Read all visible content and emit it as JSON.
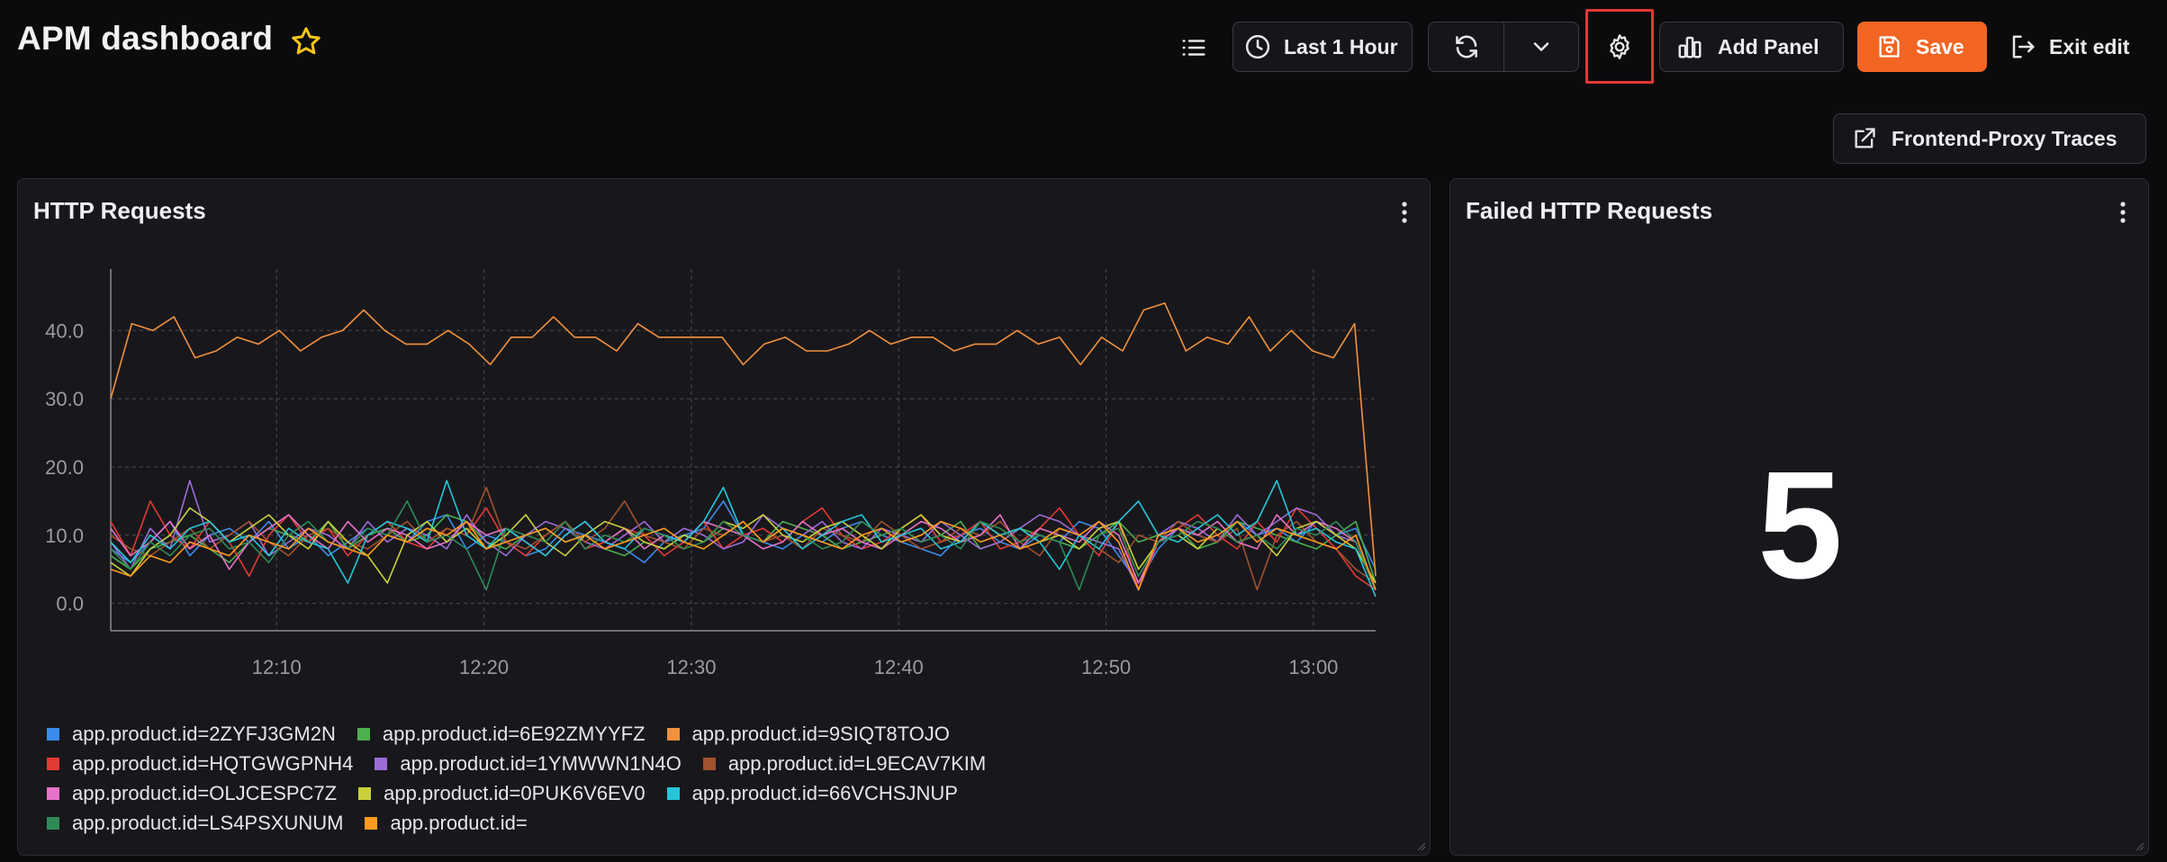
{
  "header": {
    "title": "APM dashboard",
    "time_range_label": "Last 1 Hour",
    "add_panel_label": "Add Panel",
    "save_label": "Save",
    "exit_edit_label": "Exit edit",
    "traces_link_label": "Frontend-Proxy Traces"
  },
  "colors": {
    "accent": "#f26522",
    "highlight_border": "#e53935"
  },
  "panels": {
    "http_requests": {
      "title": "HTTP Requests"
    },
    "failed_http_requests": {
      "title": "Failed HTTP Requests",
      "value": "5"
    }
  },
  "chart_data": {
    "type": "line",
    "title": "",
    "xlabel": "",
    "ylabel": "",
    "x_ticks": [
      "12:10",
      "12:20",
      "12:30",
      "12:40",
      "12:50",
      "13:00"
    ],
    "x_range_minutes": [
      2,
      63
    ],
    "y_ticks": [
      "0.0",
      "10.0",
      "20.0",
      "30.0",
      "40.0"
    ],
    "ylim": [
      -4,
      49
    ],
    "grid": true,
    "legend_position": "bottom-left",
    "series": [
      {
        "name": "app.product.id=2ZYFJ3GM2N",
        "color": "#3b8beb",
        "values": [
          8,
          6,
          9,
          12,
          7,
          10,
          11,
          9,
          12,
          8,
          10,
          7,
          9,
          11,
          10,
          9,
          12,
          13,
          8,
          10,
          9,
          7,
          8,
          11,
          10,
          9,
          8,
          6,
          9,
          10,
          11,
          15,
          10,
          9,
          8,
          10,
          9,
          11,
          12,
          10,
          9,
          8,
          7,
          10,
          11,
          9,
          8,
          10,
          9,
          12,
          11,
          7,
          3,
          8,
          11,
          10,
          9,
          12,
          10,
          11,
          9,
          12,
          10,
          11,
          5
        ]
      },
      {
        "name": "app.product.id=6E92ZMYYFZ",
        "color": "#4caf50",
        "values": [
          7,
          5,
          8,
          9,
          10,
          8,
          6,
          9,
          11,
          10,
          9,
          12,
          8,
          10,
          11,
          9,
          10,
          13,
          12,
          9,
          8,
          10,
          11,
          9,
          10,
          8,
          7,
          9,
          8,
          10,
          9,
          11,
          10,
          9,
          12,
          11,
          10,
          8,
          9,
          10,
          11,
          9,
          10,
          12,
          8,
          9,
          11,
          10,
          9,
          8,
          10,
          12,
          9,
          10,
          11,
          8,
          9,
          12,
          11,
          10,
          9,
          8,
          10,
          12,
          3
        ]
      },
      {
        "name": "app.product.id=9SIQT8TOJO",
        "color": "#f2913d",
        "values": [
          30,
          41,
          40,
          42,
          36,
          37,
          39,
          38,
          40,
          37,
          39,
          40,
          43,
          40,
          38,
          38,
          40,
          38,
          35,
          39,
          39,
          42,
          39,
          39,
          37,
          41,
          39,
          39,
          39,
          39,
          35,
          38,
          39,
          37,
          37,
          38,
          40,
          38,
          39,
          39,
          37,
          38,
          38,
          40,
          38,
          39,
          35,
          39,
          37,
          43,
          44,
          37,
          39,
          38,
          42,
          37,
          40,
          37,
          36,
          41,
          4
        ]
      },
      {
        "name": "app.product.id=HQTGWGPNH4",
        "color": "#e53935",
        "values": [
          12,
          7,
          15,
          10,
          8,
          12,
          9,
          4,
          10,
          13,
          9,
          11,
          7,
          10,
          12,
          9,
          8,
          11,
          10,
          14,
          9,
          7,
          10,
          12,
          8,
          9,
          11,
          10,
          7,
          9,
          12,
          8,
          10,
          11,
          9,
          12,
          14,
          10,
          8,
          9,
          11,
          13,
          9,
          10,
          12,
          8,
          9,
          11,
          14,
          10,
          7,
          12,
          2,
          9,
          11,
          13,
          10,
          8,
          12,
          9,
          14,
          11,
          8,
          4,
          2
        ]
      },
      {
        "name": "app.product.id=1YMWWN1N4O",
        "color": "#9c6cd6",
        "values": [
          9,
          5,
          11,
          8,
          18,
          9,
          10,
          12,
          7,
          9,
          11,
          10,
          8,
          12,
          9,
          11,
          10,
          8,
          13,
          9,
          7,
          10,
          12,
          11,
          9,
          8,
          10,
          12,
          9,
          11,
          10,
          8,
          9,
          13,
          11,
          10,
          12,
          9,
          8,
          11,
          10,
          9,
          12,
          10,
          8,
          9,
          11,
          13,
          12,
          10,
          9,
          8,
          2,
          10,
          12,
          11,
          9,
          13,
          10,
          12,
          14,
          13,
          10,
          9,
          2
        ]
      },
      {
        "name": "app.product.id=L9ECAV7KIM",
        "color": "#a0522d",
        "values": [
          10,
          8,
          7,
          9,
          11,
          8,
          10,
          12,
          9,
          7,
          10,
          11,
          9,
          8,
          10,
          12,
          9,
          11,
          10,
          17,
          9,
          8,
          10,
          12,
          9,
          11,
          15,
          10,
          9,
          8,
          11,
          10,
          12,
          9,
          10,
          8,
          11,
          10,
          9,
          12,
          10,
          8,
          9,
          11,
          10,
          12,
          9,
          7,
          11,
          10,
          8,
          6,
          10,
          9,
          12,
          10,
          9,
          11,
          2,
          10,
          12,
          9,
          8,
          5,
          3
        ]
      },
      {
        "name": "app.product.id=OLJCESPC7Z",
        "color": "#e573c7",
        "values": [
          11,
          7,
          9,
          12,
          8,
          10,
          5,
          9,
          11,
          13,
          10,
          8,
          12,
          9,
          11,
          10,
          8,
          9,
          12,
          10,
          11,
          9,
          7,
          10,
          12,
          9,
          11,
          8,
          10,
          9,
          12,
          11,
          10,
          8,
          9,
          12,
          10,
          11,
          9,
          8,
          10,
          12,
          11,
          9,
          10,
          13,
          8,
          11,
          10,
          9,
          12,
          10,
          3,
          9,
          11,
          10,
          12,
          9,
          8,
          13,
          10,
          12,
          11,
          9,
          2
        ]
      },
      {
        "name": "app.product.id=0PUK6V6EV0",
        "color": "#c8d13a",
        "values": [
          6,
          4,
          8,
          10,
          14,
          12,
          9,
          11,
          13,
          10,
          8,
          12,
          9,
          7,
          3,
          10,
          12,
          9,
          11,
          8,
          10,
          13,
          9,
          7,
          10,
          12,
          11,
          9,
          8,
          10,
          9,
          12,
          11,
          13,
          10,
          9,
          11,
          12,
          10,
          8,
          11,
          13,
          10,
          9,
          12,
          10,
          11,
          9,
          10,
          8,
          11,
          12,
          5,
          9,
          10,
          8,
          11,
          9,
          10,
          7,
          11,
          12,
          10,
          8,
          3
        ]
      },
      {
        "name": "app.product.id=66VCHSJNUP",
        "color": "#26c6da",
        "values": [
          9,
          6,
          10,
          8,
          11,
          12,
          9,
          10,
          7,
          11,
          9,
          8,
          3,
          10,
          12,
          11,
          9,
          18,
          10,
          8,
          11,
          9,
          7,
          10,
          12,
          9,
          8,
          11,
          10,
          9,
          12,
          17,
          10,
          9,
          11,
          8,
          10,
          12,
          13,
          9,
          10,
          11,
          8,
          9,
          12,
          10,
          11,
          9,
          5,
          10,
          8,
          12,
          15,
          10,
          9,
          11,
          13,
          10,
          12,
          18,
          10,
          11,
          9,
          8,
          1
        ]
      },
      {
        "name": "app.product.id=LS4PSXUNUM",
        "color": "#2e8b57",
        "values": [
          8,
          5,
          9,
          7,
          10,
          11,
          8,
          9,
          6,
          10,
          12,
          9,
          8,
          11,
          10,
          15,
          9,
          10,
          8,
          2,
          11,
          10,
          9,
          12,
          8,
          10,
          9,
          11,
          10,
          8,
          9,
          12,
          10,
          9,
          11,
          10,
          8,
          9,
          12,
          10,
          11,
          9,
          10,
          8,
          12,
          11,
          9,
          10,
          9,
          2,
          10,
          11,
          4,
          9,
          10,
          12,
          11,
          9,
          10,
          8,
          11,
          10,
          12,
          9,
          2
        ]
      },
      {
        "name": "app.product.id=",
        "color": "#ff9a1f",
        "values": [
          5,
          4,
          7,
          6,
          9,
          8,
          7,
          10,
          9,
          8,
          11,
          9,
          8,
          7,
          10,
          9,
          11,
          10,
          12,
          8,
          9,
          10,
          11,
          9,
          10,
          8,
          9,
          10,
          11,
          9,
          8,
          10,
          12,
          9,
          11,
          10,
          9,
          8,
          10,
          11,
          9,
          10,
          12,
          11,
          9,
          10,
          8,
          9,
          11,
          10,
          12,
          9,
          2,
          10,
          11,
          9,
          10,
          12,
          9,
          11,
          10,
          9,
          8,
          10,
          2
        ]
      }
    ]
  }
}
